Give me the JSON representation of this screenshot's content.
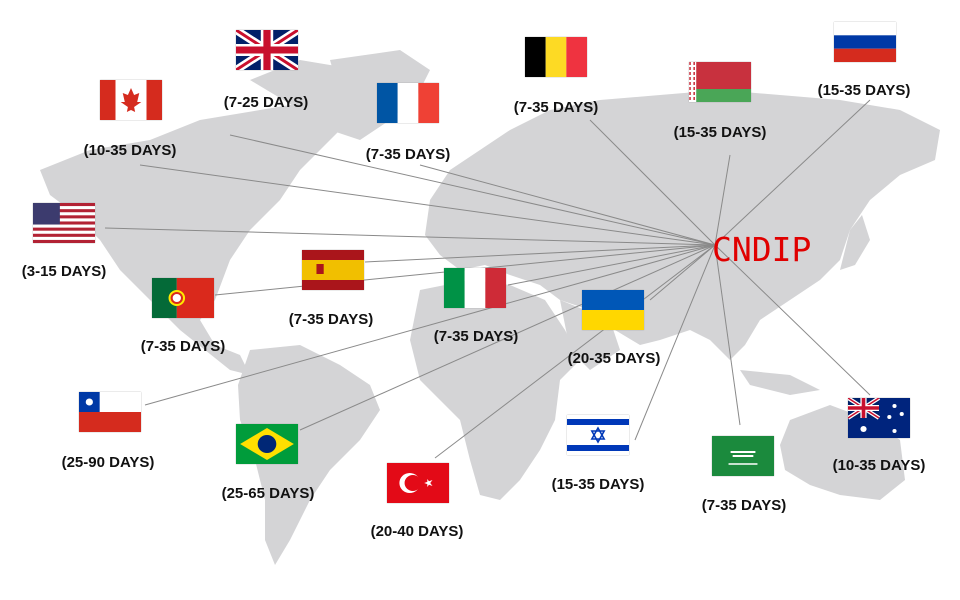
{
  "hub": {
    "label": "CNDIP",
    "color": "#e00000"
  },
  "destinations": [
    {
      "country": "uk",
      "flag_icon": "uk-flag-icon",
      "label": "(7-25 DAYS)"
    },
    {
      "country": "canada",
      "flag_icon": "canada-flag-icon",
      "label": "(10-35 DAYS)"
    },
    {
      "country": "france",
      "flag_icon": "france-flag-icon",
      "label": "(7-35 DAYS)"
    },
    {
      "country": "belgium",
      "flag_icon": "belgium-flag-icon",
      "label": "(7-35 DAYS)"
    },
    {
      "country": "belarus",
      "flag_icon": "belarus-flag-icon",
      "label": "(15-35 DAYS)"
    },
    {
      "country": "russia",
      "flag_icon": "russia-flag-icon",
      "label": "(15-35 DAYS)"
    },
    {
      "country": "usa",
      "flag_icon": "usa-flag-icon",
      "label": "(3-15 DAYS)"
    },
    {
      "country": "portugal",
      "flag_icon": "portugal-flag-icon",
      "label": "(7-35 DAYS)"
    },
    {
      "country": "spain",
      "flag_icon": "spain-flag-icon",
      "label": "(7-35 DAYS)"
    },
    {
      "country": "italy",
      "flag_icon": "italy-flag-icon",
      "label": "(7-35 DAYS)"
    },
    {
      "country": "ukraine",
      "flag_icon": "ukraine-flag-icon",
      "label": "(20-35 DAYS)"
    },
    {
      "country": "chile",
      "flag_icon": "chile-flag-icon",
      "label": "(25-90 DAYS)"
    },
    {
      "country": "brazil",
      "flag_icon": "brazil-flag-icon",
      "label": "(25-65 DAYS)"
    },
    {
      "country": "turkey",
      "flag_icon": "turkey-flag-icon",
      "label": "(20-40 DAYS)"
    },
    {
      "country": "israel",
      "flag_icon": "israel-flag-icon",
      "label": "(15-35 DAYS)"
    },
    {
      "country": "saudi-arabia",
      "flag_icon": "saudi-arabia-flag-icon",
      "label": "(7-35 DAYS)"
    },
    {
      "country": "australia",
      "flag_icon": "australia-flag-icon",
      "label": "(10-35 DAYS)"
    }
  ]
}
